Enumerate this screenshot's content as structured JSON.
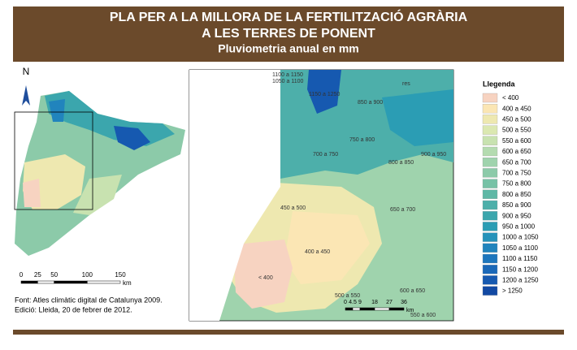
{
  "header": {
    "lines": [
      "PLA PER A LA MILLORA DE LA FERTILITZACIÓ AGRÀRIA",
      "A LES TERRES DE PONENT",
      "Pluviometria anual en mm"
    ]
  },
  "north": "N",
  "overview_scale": {
    "ticks": [
      0,
      25,
      50,
      100,
      150
    ],
    "unit": "km"
  },
  "inset_scale": {
    "ticks": [
      0,
      4.5,
      9,
      18,
      27,
      36
    ],
    "unit": "km"
  },
  "inset_labels": [
    "1100 a 1150",
    "1050 a 1100",
    "1150 a 1250",
    "850 a 900",
    "res",
    "750 a 800",
    "700 a 750",
    "900 a 950",
    "800 a 850",
    "650 a 700",
    "450 a 500",
    "400 a 450",
    "< 400",
    "600 a 650",
    "500 a 550",
    "550 a 600"
  ],
  "legend": {
    "title": "Llegenda",
    "items": [
      {
        "label": "< 400",
        "color": "#f7d3c1"
      },
      {
        "label": "400 a 450",
        "color": "#fbe6b4"
      },
      {
        "label": "450 a 500",
        "color": "#eee8b0"
      },
      {
        "label": "500 a 550",
        "color": "#dbe8b1"
      },
      {
        "label": "550 a 600",
        "color": "#c8e2b0"
      },
      {
        "label": "600 a 650",
        "color": "#b4dbb0"
      },
      {
        "label": "650 a 700",
        "color": "#9fd3ad"
      },
      {
        "label": "700 a 750",
        "color": "#8ccaa9"
      },
      {
        "label": "750 a 800",
        "color": "#76c2a6"
      },
      {
        "label": "800 a 850",
        "color": "#5fb8a6"
      },
      {
        "label": "850 a 900",
        "color": "#4dafaa"
      },
      {
        "label": "900 a 950",
        "color": "#3ba6ad"
      },
      {
        "label": "950 a 1000",
        "color": "#2b9db4"
      },
      {
        "label": "1000 a 1050",
        "color": "#2592ba"
      },
      {
        "label": "1050 a 1100",
        "color": "#2184bd"
      },
      {
        "label": "1100 a 1150",
        "color": "#1d76bd"
      },
      {
        "label": "1150 a 1200",
        "color": "#1a68b8"
      },
      {
        "label": "1200 a 1250",
        "color": "#1659b0"
      },
      {
        "label": "> 1250",
        "color": "#1249a3"
      }
    ]
  },
  "source": [
    "Font: Atles climàtic digital de Catalunya 2009.",
    "Edició: Lleida, 20 de febrer de 2012."
  ]
}
